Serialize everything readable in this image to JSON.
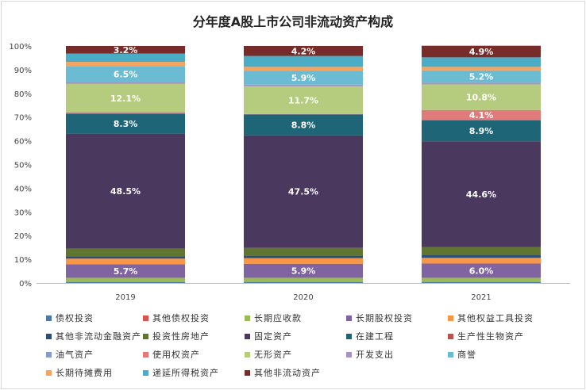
{
  "chart_data": {
    "type": "bar",
    "stacked": true,
    "title": "分年度A股上市公司非流动资产构成",
    "categories": [
      "2019",
      "2020",
      "2021"
    ],
    "ylim": [
      0,
      100
    ],
    "yticks": [
      "0%",
      "10%",
      "20%",
      "30%",
      "40%",
      "50%",
      "60%",
      "70%",
      "80%",
      "90%",
      "100%"
    ],
    "legend_position": "bottom",
    "series": [
      {
        "name": "债权投资",
        "color": "#4e79a7",
        "values": [
          0.4,
          0.4,
          0.4
        ]
      },
      {
        "name": "其他债权投资",
        "color": "#d9534f",
        "values": [
          0.2,
          0.2,
          0.2
        ]
      },
      {
        "name": "长期应收款",
        "color": "#9bbb59",
        "values": [
          1.6,
          1.6,
          1.6
        ]
      },
      {
        "name": "长期股权投资",
        "color": "#8064a2",
        "values": [
          5.7,
          5.9,
          6.0
        ],
        "labels": [
          "5.7%",
          "5.9%",
          "6.0%"
        ]
      },
      {
        "name": "其他权益工具投资",
        "color": "#f79646",
        "values": [
          2.4,
          2.4,
          2.4
        ]
      },
      {
        "name": "其他非流动金融资产",
        "color": "#2c4d75",
        "values": [
          1.0,
          1.0,
          1.1
        ]
      },
      {
        "name": "投资性房地产",
        "color": "#5f7530",
        "values": [
          3.2,
          3.3,
          3.5
        ]
      },
      {
        "name": "固定资产",
        "color": "#4b385f",
        "values": [
          48.5,
          47.5,
          44.6
        ],
        "labels": [
          "48.5%",
          "47.5%",
          "44.6%"
        ]
      },
      {
        "name": "在建工程",
        "color": "#1f6578",
        "values": [
          8.3,
          8.8,
          8.9
        ],
        "labels": [
          "8.3%",
          "8.8%",
          "8.9%"
        ]
      },
      {
        "name": "生产性生物资产",
        "color": "#c0504d",
        "values": [
          0.5,
          0.1,
          0.1
        ]
      },
      {
        "name": "油气资产",
        "color": "#7f9fc6",
        "values": [
          0.1,
          0.1,
          0.1
        ]
      },
      {
        "name": "使用权资产",
        "color": "#e07b7b",
        "values": [
          0.0,
          0.0,
          4.1
        ],
        "labels": [
          "",
          "",
          "4.1%"
        ]
      },
      {
        "name": "无形资产",
        "color": "#b5cc7e",
        "values": [
          12.1,
          11.7,
          10.8
        ],
        "labels": [
          "12.1%",
          "11.7%",
          "10.8%"
        ]
      },
      {
        "name": "开发支出",
        "color": "#a592c0",
        "values": [
          0.8,
          0.7,
          0.7
        ]
      },
      {
        "name": "商誉",
        "color": "#6bbbd2",
        "values": [
          6.5,
          5.9,
          5.2
        ],
        "labels": [
          "6.5%",
          "5.9%",
          "5.2%"
        ]
      },
      {
        "name": "长期待摊费用",
        "color": "#f4a460",
        "values": [
          2.0,
          1.6,
          1.5
        ]
      },
      {
        "name": "递延所得税资产",
        "color": "#4bacc6",
        "values": [
          3.5,
          4.6,
          4.0
        ]
      },
      {
        "name": "其他非流动资产",
        "color": "#772c2a",
        "values": [
          3.2,
          4.2,
          4.9
        ],
        "labels": [
          "3.2%",
          "4.2%",
          "4.9%"
        ]
      }
    ]
  }
}
